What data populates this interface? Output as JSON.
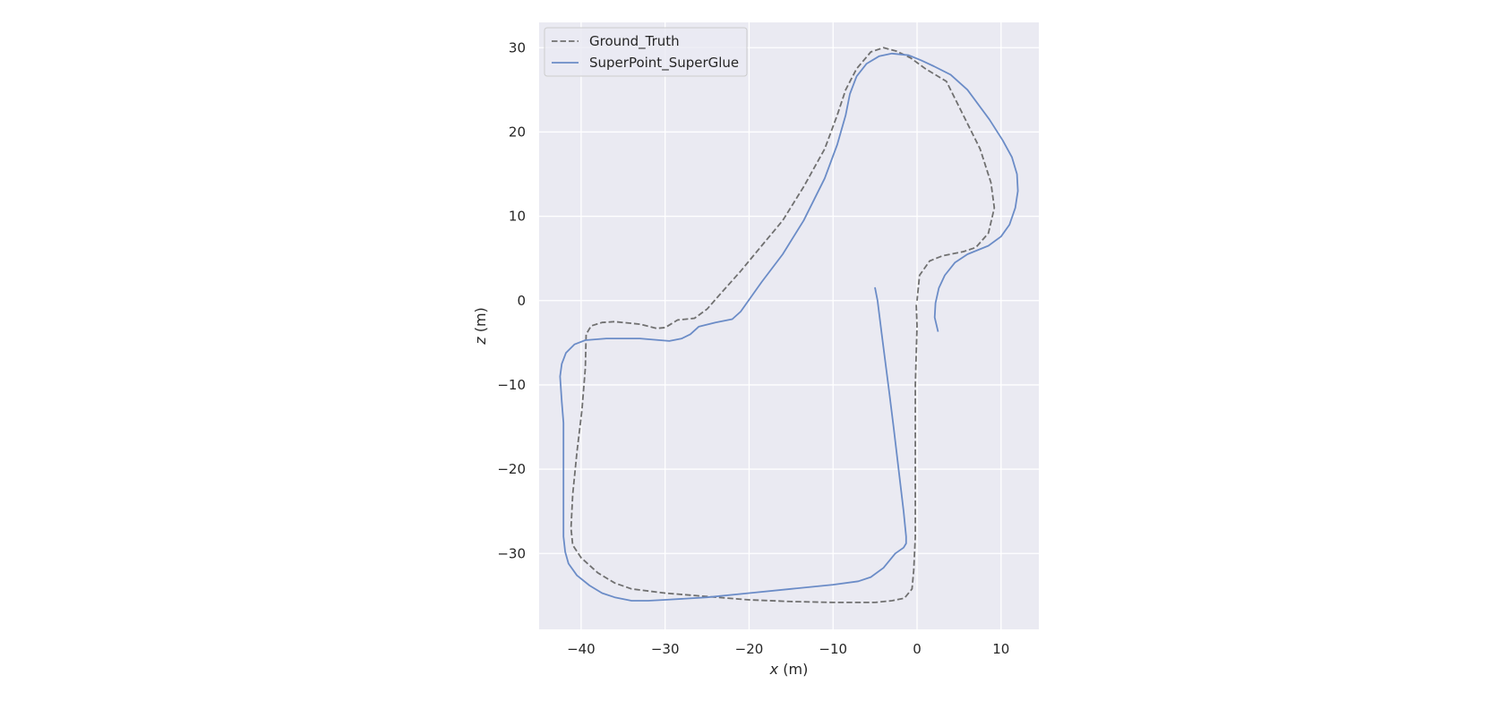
{
  "chart_data": {
    "type": "line",
    "xlabel_var": "x",
    "xlabel_unit": "(m)",
    "ylabel_var": "z",
    "ylabel_unit": "(m)",
    "xlim": [
      -45,
      14.5
    ],
    "ylim": [
      -39,
      33
    ],
    "xticks": [
      -40,
      -30,
      -20,
      -10,
      0,
      10
    ],
    "yticks": [
      -30,
      -20,
      -10,
      0,
      10,
      20,
      30
    ],
    "xtick_labels": [
      "−40",
      "−30",
      "−20",
      "−10",
      "0",
      "10"
    ],
    "ytick_labels": [
      "−30",
      "−20",
      "−10",
      "0",
      "10",
      "20",
      "30"
    ],
    "grid": true,
    "legend_position": "top-left",
    "colors": {
      "plot_background": "#eaeaf2",
      "grid": "#ffffff",
      "ground_truth": "#707070",
      "superpoint_superglue": "#6b8cc7",
      "legend_border": "#cccccc"
    },
    "series": [
      {
        "name": "Ground_Truth",
        "style": "dashed",
        "points": [
          [
            -0.1,
            -0.5
          ],
          [
            0,
            -3
          ],
          [
            -0.2,
            -10
          ],
          [
            -0.2,
            -20
          ],
          [
            -0.2,
            -28
          ],
          [
            -0.4,
            -32
          ],
          [
            -0.6,
            -34.2
          ],
          [
            -1.5,
            -35.3
          ],
          [
            -3,
            -35.6
          ],
          [
            -5,
            -35.8
          ],
          [
            -10,
            -35.8
          ],
          [
            -15,
            -35.7
          ],
          [
            -20,
            -35.5
          ],
          [
            -25,
            -35.1
          ],
          [
            -30,
            -34.7
          ],
          [
            -34,
            -34.2
          ],
          [
            -36,
            -33.5
          ],
          [
            -38,
            -32.3
          ],
          [
            -40,
            -30.5
          ],
          [
            -41,
            -29
          ],
          [
            -41.2,
            -27
          ],
          [
            -41,
            -23
          ],
          [
            -40.5,
            -18
          ],
          [
            -39.9,
            -13
          ],
          [
            -39.5,
            -8
          ],
          [
            -39.4,
            -4
          ],
          [
            -38.8,
            -3
          ],
          [
            -37.5,
            -2.6
          ],
          [
            -36,
            -2.5
          ],
          [
            -33,
            -2.8
          ],
          [
            -31,
            -3.3
          ],
          [
            -30,
            -3.2
          ],
          [
            -28.5,
            -2.3
          ],
          [
            -27.5,
            -2.2
          ],
          [
            -26.5,
            -2.1
          ],
          [
            -25,
            -1
          ],
          [
            -23.5,
            0.7
          ],
          [
            -21,
            3.5
          ],
          [
            -18.5,
            6.5
          ],
          [
            -16,
            9.5
          ],
          [
            -13.5,
            13.5
          ],
          [
            -11,
            18
          ],
          [
            -9.5,
            22
          ],
          [
            -8.5,
            25
          ],
          [
            -7.2,
            27.5
          ],
          [
            -5.5,
            29.5
          ],
          [
            -4,
            30
          ],
          [
            -2.5,
            29.6
          ],
          [
            -0.8,
            28.8
          ],
          [
            1,
            27.5
          ],
          [
            3.5,
            26
          ],
          [
            5.5,
            22
          ],
          [
            7.5,
            18
          ],
          [
            8.8,
            14
          ],
          [
            9.2,
            11
          ],
          [
            8.5,
            8
          ],
          [
            7,
            6.3
          ],
          [
            5.5,
            5.8
          ],
          [
            3,
            5.3
          ],
          [
            1.5,
            4.7
          ],
          [
            0.3,
            3
          ],
          [
            0,
            0
          ]
        ]
      },
      {
        "name": "SuperPoint_SuperGlue",
        "style": "solid",
        "points": [
          [
            2.5,
            -3.7
          ],
          [
            2.1,
            -2
          ],
          [
            2.2,
            -0.3
          ],
          [
            2.6,
            1.5
          ],
          [
            3.3,
            3
          ],
          [
            4.5,
            4.5
          ],
          [
            6,
            5.5
          ],
          [
            8.5,
            6.5
          ],
          [
            10,
            7.6
          ],
          [
            11,
            9
          ],
          [
            11.7,
            11
          ],
          [
            12,
            13
          ],
          [
            11.9,
            15
          ],
          [
            11.3,
            17
          ],
          [
            10.2,
            19
          ],
          [
            8.6,
            21.5
          ],
          [
            6,
            25
          ],
          [
            4,
            26.8
          ],
          [
            2,
            27.8
          ],
          [
            0.5,
            28.5
          ],
          [
            -1,
            29.1
          ],
          [
            -3,
            29.3
          ],
          [
            -4.5,
            29
          ],
          [
            -6,
            28.1
          ],
          [
            -7.2,
            26.6
          ],
          [
            -8,
            24.5
          ],
          [
            -8.5,
            22
          ],
          [
            -9.5,
            18.5
          ],
          [
            -11,
            14.5
          ],
          [
            -13.5,
            9.5
          ],
          [
            -16,
            5.5
          ],
          [
            -18.5,
            2.2
          ],
          [
            -21,
            -1.3
          ],
          [
            -22,
            -2.2
          ],
          [
            -24,
            -2.6
          ],
          [
            -26,
            -3.1
          ],
          [
            -27,
            -4
          ],
          [
            -28,
            -4.5
          ],
          [
            -29.5,
            -4.8
          ],
          [
            -33,
            -4.5
          ],
          [
            -35.5,
            -4.5
          ],
          [
            -37,
            -4.5
          ],
          [
            -39.5,
            -4.7
          ],
          [
            -40.8,
            -5.2
          ],
          [
            -41.8,
            -6.2
          ],
          [
            -42.3,
            -7.5
          ],
          [
            -42.5,
            -9
          ],
          [
            -42.3,
            -12
          ],
          [
            -42.1,
            -14.5
          ],
          [
            -42.1,
            -18
          ],
          [
            -42.1,
            -23
          ],
          [
            -42.1,
            -25
          ],
          [
            -42.1,
            -28
          ],
          [
            -41.9,
            -29.8
          ],
          [
            -41.5,
            -31.2
          ],
          [
            -40.5,
            -32.6
          ],
          [
            -39,
            -33.8
          ],
          [
            -37.5,
            -34.7
          ],
          [
            -36,
            -35.2
          ],
          [
            -34,
            -35.6
          ],
          [
            -32,
            -35.6
          ],
          [
            -30,
            -35.5
          ],
          [
            -25,
            -35.2
          ],
          [
            -20,
            -34.7
          ],
          [
            -15,
            -34.2
          ],
          [
            -10,
            -33.7
          ],
          [
            -7,
            -33.3
          ],
          [
            -5.5,
            -32.8
          ],
          [
            -4,
            -31.7
          ],
          [
            -2.6,
            -30
          ],
          [
            -1.6,
            -29.3
          ],
          [
            -1.3,
            -28.8
          ],
          [
            -1.3,
            -28
          ],
          [
            -1.6,
            -25
          ],
          [
            -2.2,
            -20
          ],
          [
            -2.8,
            -15
          ],
          [
            -3.3,
            -11
          ],
          [
            -4.2,
            -4
          ],
          [
            -4.7,
            0
          ],
          [
            -5,
            1.5
          ],
          [
            -4.7,
            0
          ],
          [
            -5,
            1.5
          ]
        ]
      }
    ]
  }
}
